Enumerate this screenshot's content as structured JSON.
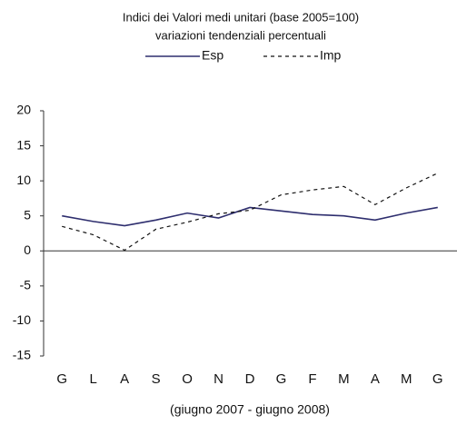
{
  "chart_data": {
    "type": "line",
    "title": "Indici dei Valori medi unitari (base 2005=100)",
    "subtitle": "variazioni tendenziali percentuali",
    "x_label": "(giugno 2007 - giugno 2008)",
    "categories": [
      "G",
      "L",
      "A",
      "S",
      "O",
      "N",
      "D",
      "G",
      "F",
      "M",
      "A",
      "M",
      "G"
    ],
    "series": [
      {
        "name": "Esp",
        "color": "#2e2e6e",
        "dash": false,
        "values": [
          5.0,
          4.2,
          3.6,
          4.4,
          5.4,
          4.7,
          6.2,
          5.7,
          5.2,
          5.0,
          4.4,
          5.4,
          6.2
        ]
      },
      {
        "name": "Imp",
        "color": "#111111",
        "dash": true,
        "values": [
          3.5,
          2.3,
          0.1,
          3.1,
          4.1,
          5.3,
          5.8,
          8.0,
          8.7,
          9.2,
          6.6,
          9.0,
          11.1
        ]
      }
    ],
    "ylim": [
      -15,
      20
    ],
    "yticks": [
      -15,
      -10,
      -5,
      0,
      5,
      10,
      15,
      20
    ],
    "grid": false,
    "legend": "top"
  }
}
